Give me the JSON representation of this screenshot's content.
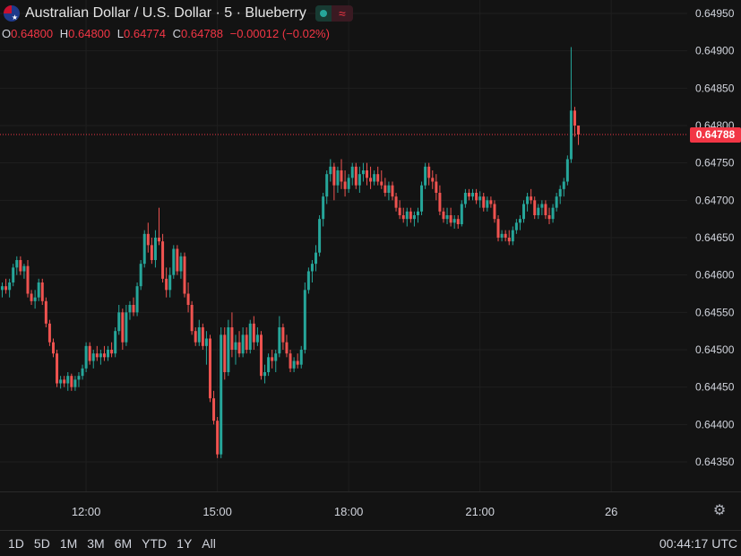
{
  "header": {
    "title": "Australian Dollar / U.S. Dollar · 5 · Blueberry",
    "flag_icon": "aud-usd-flag-icon",
    "status_icon": "market-open-dot-icon",
    "indicator_icon": "wave-icon"
  },
  "ohlc": {
    "o_label": "O",
    "o": "0.64800",
    "h_label": "H",
    "h": "0.64800",
    "l_label": "L",
    "l": "0.64774",
    "c_label": "C",
    "c": "0.64788",
    "change": "−0.00012 (−0.02%)"
  },
  "last_price": "0.64788",
  "ranges": [
    "1D",
    "5D",
    "1M",
    "3M",
    "6M",
    "YTD",
    "1Y",
    "All"
  ],
  "clock": "00:44:17 UTC",
  "colors": {
    "up": "#26a69a",
    "down": "#ef5350",
    "background": "#131313",
    "grid": "#1f1f1f",
    "last_price": "#f23645"
  },
  "chart_data": {
    "type": "candlestick",
    "y_ticks": [
      "0.64950",
      "0.64900",
      "0.64850",
      "0.64800",
      "0.64750",
      "0.64700",
      "0.64650",
      "0.64600",
      "0.64550",
      "0.64500",
      "0.64450",
      "0.64400",
      "0.64350"
    ],
    "ylim": [
      0.64305,
      0.6497
    ],
    "x_ticks": [
      {
        "label": "12:00",
        "bar": 23
      },
      {
        "label": "15:00",
        "bar": 59
      },
      {
        "label": "18:00",
        "bar": 95
      },
      {
        "label": "21:00",
        "bar": 131
      },
      {
        "label": "26",
        "bar": 167
      }
    ],
    "last_price": 0.64788,
    "bars": [
      [
        0.6458,
        0.6459,
        0.6457,
        0.64585
      ],
      [
        0.64585,
        0.64595,
        0.64575,
        0.6458
      ],
      [
        0.6458,
        0.64595,
        0.6457,
        0.6459
      ],
      [
        0.6459,
        0.64615,
        0.64585,
        0.6461
      ],
      [
        0.6461,
        0.64625,
        0.646,
        0.6462
      ],
      [
        0.6462,
        0.64625,
        0.646,
        0.64605
      ],
      [
        0.64605,
        0.64615,
        0.64595,
        0.64612
      ],
      [
        0.64612,
        0.6462,
        0.6457,
        0.64575
      ],
      [
        0.64575,
        0.6458,
        0.6456,
        0.64565
      ],
      [
        0.64565,
        0.6458,
        0.64555,
        0.6457
      ],
      [
        0.6457,
        0.64595,
        0.64565,
        0.6459
      ],
      [
        0.6459,
        0.64595,
        0.6456,
        0.64565
      ],
      [
        0.64565,
        0.6457,
        0.6453,
        0.64535
      ],
      [
        0.64535,
        0.6454,
        0.64505,
        0.6451
      ],
      [
        0.6451,
        0.64515,
        0.6449,
        0.64495
      ],
      [
        0.64495,
        0.645,
        0.6445,
        0.64455
      ],
      [
        0.64455,
        0.64465,
        0.64448,
        0.6446
      ],
      [
        0.6446,
        0.64465,
        0.6445,
        0.64455
      ],
      [
        0.64455,
        0.6447,
        0.64445,
        0.64465
      ],
      [
        0.64465,
        0.64468,
        0.64445,
        0.6445
      ],
      [
        0.6445,
        0.64465,
        0.64445,
        0.6446
      ],
      [
        0.6446,
        0.6447,
        0.6445,
        0.64465
      ],
      [
        0.64465,
        0.6448,
        0.6446,
        0.64475
      ],
      [
        0.64475,
        0.6451,
        0.6447,
        0.64505
      ],
      [
        0.64505,
        0.6451,
        0.6448,
        0.64485
      ],
      [
        0.64485,
        0.645,
        0.64475,
        0.64495
      ],
      [
        0.64495,
        0.64505,
        0.64485,
        0.6449
      ],
      [
        0.6449,
        0.645,
        0.6448,
        0.64495
      ],
      [
        0.64495,
        0.64505,
        0.64485,
        0.6449
      ],
      [
        0.6449,
        0.64505,
        0.64485,
        0.645
      ],
      [
        0.645,
        0.6451,
        0.6449,
        0.64495
      ],
      [
        0.64495,
        0.6453,
        0.6449,
        0.64525
      ],
      [
        0.64525,
        0.6456,
        0.6452,
        0.6455
      ],
      [
        0.6455,
        0.64555,
        0.645,
        0.6451
      ],
      [
        0.6451,
        0.6456,
        0.64505,
        0.6455
      ],
      [
        0.6455,
        0.64565,
        0.6454,
        0.6456
      ],
      [
        0.6456,
        0.6457,
        0.64545,
        0.6455
      ],
      [
        0.6455,
        0.6459,
        0.64545,
        0.64585
      ],
      [
        0.64585,
        0.6462,
        0.6458,
        0.64615
      ],
      [
        0.64615,
        0.6466,
        0.6461,
        0.64655
      ],
      [
        0.64655,
        0.6467,
        0.6463,
        0.6464
      ],
      [
        0.6464,
        0.6465,
        0.64615,
        0.6462
      ],
      [
        0.6462,
        0.6466,
        0.6461,
        0.6465
      ],
      [
        0.6465,
        0.6469,
        0.6464,
        0.64645
      ],
      [
        0.64645,
        0.64655,
        0.6459,
        0.64595
      ],
      [
        0.64595,
        0.6461,
        0.6457,
        0.6458
      ],
      [
        0.6458,
        0.6461,
        0.6457,
        0.646
      ],
      [
        0.646,
        0.6464,
        0.64595,
        0.64635
      ],
      [
        0.64635,
        0.6464,
        0.646,
        0.64605
      ],
      [
        0.64605,
        0.6463,
        0.64595,
        0.64625
      ],
      [
        0.64625,
        0.6463,
        0.6457,
        0.64575
      ],
      [
        0.64575,
        0.6459,
        0.6455,
        0.6456
      ],
      [
        0.6456,
        0.64565,
        0.6452,
        0.64525
      ],
      [
        0.64525,
        0.6453,
        0.64505,
        0.6451
      ],
      [
        0.6451,
        0.6454,
        0.64505,
        0.6453
      ],
      [
        0.6453,
        0.64535,
        0.645,
        0.64505
      ],
      [
        0.64505,
        0.64525,
        0.6448,
        0.64515
      ],
      [
        0.64515,
        0.6452,
        0.6443,
        0.64435
      ],
      [
        0.64435,
        0.64445,
        0.644,
        0.64405
      ],
      [
        0.64405,
        0.6441,
        0.64355,
        0.6436
      ],
      [
        0.6436,
        0.6453,
        0.64355,
        0.6452
      ],
      [
        0.6452,
        0.6453,
        0.6446,
        0.6447
      ],
      [
        0.6447,
        0.6454,
        0.64465,
        0.6453
      ],
      [
        0.6453,
        0.6455,
        0.6449,
        0.645
      ],
      [
        0.645,
        0.6452,
        0.6448,
        0.6451
      ],
      [
        0.6451,
        0.64525,
        0.6449,
        0.64495
      ],
      [
        0.64495,
        0.6453,
        0.6449,
        0.6452
      ],
      [
        0.6452,
        0.6453,
        0.64495,
        0.645
      ],
      [
        0.645,
        0.6454,
        0.64495,
        0.64535
      ],
      [
        0.64535,
        0.64545,
        0.645,
        0.6451
      ],
      [
        0.6451,
        0.6453,
        0.64505,
        0.6452
      ],
      [
        0.6452,
        0.64525,
        0.6446,
        0.64465
      ],
      [
        0.64465,
        0.6448,
        0.64455,
        0.6447
      ],
      [
        0.6447,
        0.64495,
        0.64465,
        0.6449
      ],
      [
        0.6449,
        0.645,
        0.64475,
        0.64485
      ],
      [
        0.64485,
        0.645,
        0.6447,
        0.64495
      ],
      [
        0.64495,
        0.64545,
        0.6449,
        0.6453
      ],
      [
        0.6453,
        0.64535,
        0.645,
        0.6451
      ],
      [
        0.6451,
        0.6452,
        0.6449,
        0.64495
      ],
      [
        0.64495,
        0.645,
        0.6447,
        0.64475
      ],
      [
        0.64475,
        0.6449,
        0.6447,
        0.64485
      ],
      [
        0.64485,
        0.64495,
        0.64475,
        0.6448
      ],
      [
        0.6448,
        0.64505,
        0.64475,
        0.645
      ],
      [
        0.645,
        0.6459,
        0.64495,
        0.6458
      ],
      [
        0.6458,
        0.6461,
        0.64575,
        0.64605
      ],
      [
        0.64605,
        0.6462,
        0.6459,
        0.64615
      ],
      [
        0.64615,
        0.6464,
        0.64605,
        0.6463
      ],
      [
        0.6463,
        0.6468,
        0.64625,
        0.64675
      ],
      [
        0.64675,
        0.6471,
        0.64665,
        0.64705
      ],
      [
        0.64705,
        0.6474,
        0.64695,
        0.64735
      ],
      [
        0.64735,
        0.64755,
        0.64725,
        0.64745
      ],
      [
        0.64745,
        0.6475,
        0.647,
        0.6472
      ],
      [
        0.6472,
        0.64745,
        0.6471,
        0.6474
      ],
      [
        0.6474,
        0.64755,
        0.64715,
        0.64725
      ],
      [
        0.64725,
        0.6474,
        0.64705,
        0.64715
      ],
      [
        0.64715,
        0.64735,
        0.6471,
        0.6473
      ],
      [
        0.6473,
        0.6475,
        0.6472,
        0.64745
      ],
      [
        0.64745,
        0.6475,
        0.64715,
        0.6472
      ],
      [
        0.6472,
        0.64745,
        0.6471,
        0.64735
      ],
      [
        0.64735,
        0.6475,
        0.64725,
        0.6474
      ],
      [
        0.6474,
        0.6475,
        0.6472,
        0.6473
      ],
      [
        0.6473,
        0.64745,
        0.64715,
        0.64725
      ],
      [
        0.64725,
        0.6474,
        0.6472,
        0.64735
      ],
      [
        0.64735,
        0.64745,
        0.6472,
        0.64725
      ],
      [
        0.64725,
        0.6474,
        0.64715,
        0.6472
      ],
      [
        0.6472,
        0.6473,
        0.64705,
        0.6471
      ],
      [
        0.6471,
        0.64725,
        0.647,
        0.6472
      ],
      [
        0.6472,
        0.64725,
        0.647,
        0.64705
      ],
      [
        0.64705,
        0.6471,
        0.64685,
        0.6469
      ],
      [
        0.6469,
        0.647,
        0.64675,
        0.6468
      ],
      [
        0.6468,
        0.6469,
        0.6467,
        0.64675
      ],
      [
        0.64675,
        0.6469,
        0.64665,
        0.64685
      ],
      [
        0.64685,
        0.6469,
        0.6467,
        0.64675
      ],
      [
        0.64675,
        0.64685,
        0.64665,
        0.6468
      ],
      [
        0.6468,
        0.6469,
        0.6467,
        0.64685
      ],
      [
        0.64685,
        0.64725,
        0.6468,
        0.6472
      ],
      [
        0.6472,
        0.6475,
        0.64715,
        0.64745
      ],
      [
        0.64745,
        0.6475,
        0.6472,
        0.6473
      ],
      [
        0.6473,
        0.6474,
        0.64715,
        0.64725
      ],
      [
        0.64725,
        0.64735,
        0.647,
        0.6471
      ],
      [
        0.6471,
        0.6472,
        0.6468,
        0.64685
      ],
      [
        0.64685,
        0.6469,
        0.6467,
        0.64675
      ],
      [
        0.64675,
        0.6469,
        0.64668,
        0.6468
      ],
      [
        0.6468,
        0.6469,
        0.64665,
        0.6467
      ],
      [
        0.6467,
        0.6468,
        0.64662,
        0.64675
      ],
      [
        0.64675,
        0.6468,
        0.64662,
        0.64668
      ],
      [
        0.64668,
        0.647,
        0.64665,
        0.64695
      ],
      [
        0.64695,
        0.64715,
        0.6469,
        0.6471
      ],
      [
        0.6471,
        0.64715,
        0.647,
        0.64705
      ],
      [
        0.64705,
        0.64715,
        0.647,
        0.6471
      ],
      [
        0.6471,
        0.64715,
        0.64695,
        0.647
      ],
      [
        0.647,
        0.64712,
        0.6469,
        0.64705
      ],
      [
        0.64705,
        0.6471,
        0.64685,
        0.6469
      ],
      [
        0.6469,
        0.64705,
        0.64685,
        0.647
      ],
      [
        0.647,
        0.64705,
        0.6469,
        0.64695
      ],
      [
        0.64695,
        0.647,
        0.6467,
        0.64675
      ],
      [
        0.64675,
        0.6468,
        0.64645,
        0.6465
      ],
      [
        0.6465,
        0.6466,
        0.64645,
        0.64655
      ],
      [
        0.64655,
        0.6466,
        0.64645,
        0.6465
      ],
      [
        0.6465,
        0.6466,
        0.6464,
        0.64645
      ],
      [
        0.64645,
        0.64665,
        0.6464,
        0.6466
      ],
      [
        0.6466,
        0.64675,
        0.64655,
        0.6467
      ],
      [
        0.6467,
        0.6468,
        0.6466,
        0.64675
      ],
      [
        0.64675,
        0.647,
        0.6467,
        0.64695
      ],
      [
        0.64695,
        0.6471,
        0.64685,
        0.64705
      ],
      [
        0.64705,
        0.64715,
        0.64695,
        0.647
      ],
      [
        0.647,
        0.64705,
        0.64675,
        0.6468
      ],
      [
        0.6468,
        0.64695,
        0.64675,
        0.6469
      ],
      [
        0.6469,
        0.647,
        0.6468,
        0.64695
      ],
      [
        0.64695,
        0.647,
        0.64675,
        0.6468
      ],
      [
        0.6468,
        0.6469,
        0.64668,
        0.64675
      ],
      [
        0.64675,
        0.64695,
        0.6467,
        0.6469
      ],
      [
        0.6469,
        0.6471,
        0.64685,
        0.64705
      ],
      [
        0.64705,
        0.6472,
        0.64695,
        0.64715
      ],
      [
        0.64715,
        0.6473,
        0.64705,
        0.64725
      ],
      [
        0.64725,
        0.6476,
        0.6472,
        0.64755
      ],
      [
        0.64755,
        0.64905,
        0.6475,
        0.6482
      ],
      [
        0.6482,
        0.64825,
        0.64785,
        0.648
      ],
      [
        0.648,
        0.648,
        0.64774,
        0.64788
      ]
    ]
  }
}
